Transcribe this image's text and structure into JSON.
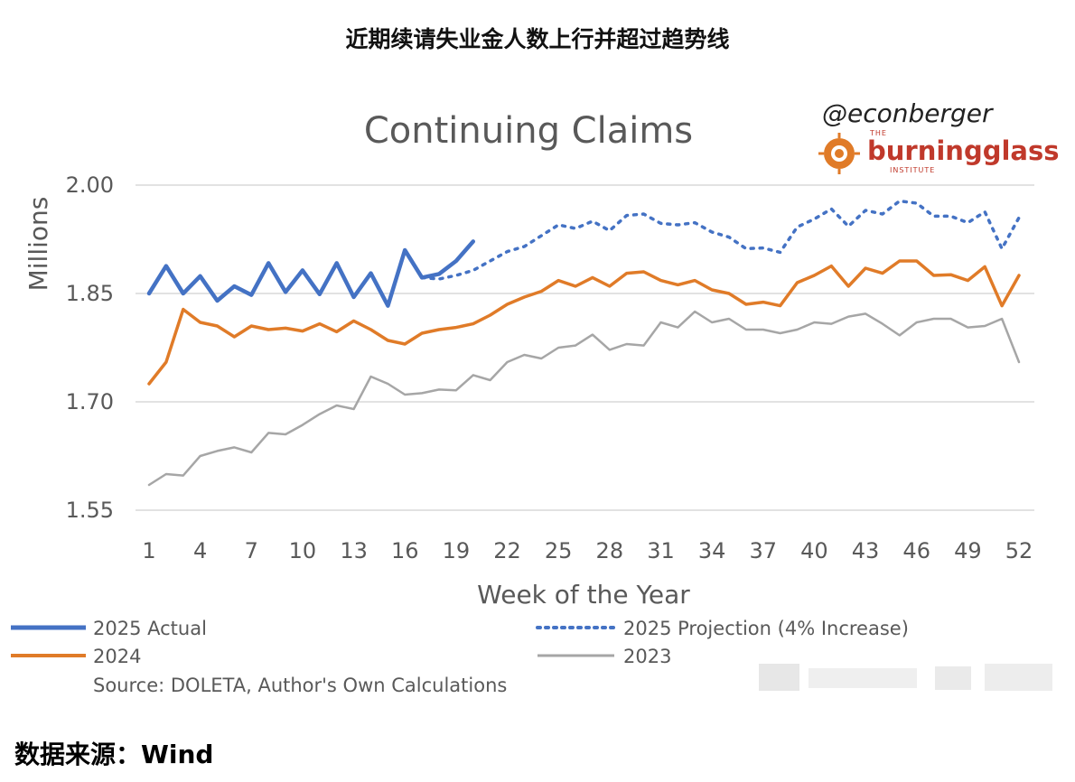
{
  "page_title": "近期续请失业金人数上行并超过趋势线",
  "footer": "数据来源：Wind",
  "watermark": {
    "handle": "@econberger",
    "logo_main": "burningglass",
    "logo_top": "THE",
    "logo_bottom": "INSTITUTE"
  },
  "source_note": "Source: DOLETA, Author's Own Calculations",
  "colors": {
    "actual_2025": "#4472c4",
    "projection_2025": "#4472c4",
    "y2024": "#e07b28",
    "y2023": "#a6a6a6",
    "grid": "#d9d9d9",
    "logo": "#c0392b"
  },
  "chart_data": {
    "type": "line",
    "title": "Continuing Claims",
    "xlabel": "Week of the Year",
    "ylabel": "Millions",
    "xlim": [
      1,
      52
    ],
    "ylim": [
      1.55,
      2.0
    ],
    "yticks": [
      "1.55",
      "1.70",
      "1.85",
      "2.00"
    ],
    "xticks": [
      "1",
      "4",
      "7",
      "10",
      "13",
      "16",
      "19",
      "22",
      "25",
      "28",
      "31",
      "34",
      "37",
      "40",
      "43",
      "46",
      "49",
      "52"
    ],
    "grid": "horizontal",
    "legend_position": "bottom",
    "series": [
      {
        "name": "2025 Actual",
        "style": "solid-thick",
        "color": "#4472c4",
        "x": [
          1,
          2,
          3,
          4,
          5,
          6,
          7,
          8,
          9,
          10,
          11,
          12,
          13,
          14,
          15,
          16,
          17,
          18,
          19,
          20
        ],
        "values": [
          1.85,
          1.888,
          1.85,
          1.874,
          1.84,
          1.86,
          1.848,
          1.892,
          1.852,
          1.882,
          1.849,
          1.892,
          1.845,
          1.878,
          1.833,
          1.91,
          1.872,
          1.877,
          1.895,
          1.922
        ]
      },
      {
        "name": "2025 Projection (4% Increase)",
        "style": "dotted",
        "color": "#4472c4",
        "x": [
          17,
          18,
          19,
          20,
          21,
          22,
          23,
          24,
          25,
          26,
          27,
          28,
          29,
          30,
          31,
          32,
          33,
          34,
          35,
          36,
          37,
          38,
          39,
          40,
          41,
          42,
          43,
          44,
          45,
          46,
          47,
          48,
          49,
          50,
          51,
          52
        ],
        "values": [
          1.872,
          1.87,
          1.875,
          1.882,
          1.895,
          1.908,
          1.915,
          1.93,
          1.945,
          1.94,
          1.95,
          1.937,
          1.958,
          1.96,
          1.947,
          1.945,
          1.948,
          1.935,
          1.928,
          1.912,
          1.913,
          1.907,
          1.942,
          1.953,
          1.967,
          1.943,
          1.965,
          1.96,
          1.978,
          1.975,
          1.957,
          1.957,
          1.948,
          1.963,
          1.912,
          1.955
        ]
      },
      {
        "name": "2024",
        "style": "solid",
        "color": "#e07b28",
        "x": [
          1,
          2,
          3,
          4,
          5,
          6,
          7,
          8,
          9,
          10,
          11,
          12,
          13,
          14,
          15,
          16,
          17,
          18,
          19,
          20,
          21,
          22,
          23,
          24,
          25,
          26,
          27,
          28,
          29,
          30,
          31,
          32,
          33,
          34,
          35,
          36,
          37,
          38,
          39,
          40,
          41,
          42,
          43,
          44,
          45,
          46,
          47,
          48,
          49,
          50,
          51,
          52
        ],
        "values": [
          1.725,
          1.755,
          1.828,
          1.81,
          1.805,
          1.79,
          1.805,
          1.8,
          1.802,
          1.798,
          1.808,
          1.797,
          1.812,
          1.8,
          1.785,
          1.78,
          1.795,
          1.8,
          1.803,
          1.808,
          1.82,
          1.835,
          1.845,
          1.853,
          1.868,
          1.86,
          1.872,
          1.86,
          1.878,
          1.88,
          1.868,
          1.862,
          1.868,
          1.855,
          1.85,
          1.835,
          1.838,
          1.833,
          1.865,
          1.875,
          1.888,
          1.86,
          1.885,
          1.878,
          1.895,
          1.895,
          1.875,
          1.876,
          1.868,
          1.887,
          1.833,
          1.875
        ]
      },
      {
        "name": "2023",
        "style": "solid-thin",
        "color": "#a6a6a6",
        "x": [
          1,
          2,
          3,
          4,
          5,
          6,
          7,
          8,
          9,
          10,
          11,
          12,
          13,
          14,
          15,
          16,
          17,
          18,
          19,
          20,
          21,
          22,
          23,
          24,
          25,
          26,
          27,
          28,
          29,
          30,
          31,
          32,
          33,
          34,
          35,
          36,
          37,
          38,
          39,
          40,
          41,
          42,
          43,
          44,
          45,
          46,
          47,
          48,
          49,
          50,
          51,
          52
        ],
        "values": [
          1.585,
          1.6,
          1.598,
          1.625,
          1.632,
          1.637,
          1.63,
          1.657,
          1.655,
          1.668,
          1.683,
          1.695,
          1.69,
          1.735,
          1.725,
          1.71,
          1.712,
          1.717,
          1.716,
          1.737,
          1.73,
          1.755,
          1.765,
          1.76,
          1.775,
          1.778,
          1.793,
          1.772,
          1.78,
          1.778,
          1.81,
          1.803,
          1.825,
          1.81,
          1.815,
          1.8,
          1.8,
          1.795,
          1.8,
          1.81,
          1.808,
          1.818,
          1.822,
          1.808,
          1.792,
          1.81,
          1.815,
          1.815,
          1.803,
          1.805,
          1.815,
          1.755
        ]
      }
    ]
  }
}
